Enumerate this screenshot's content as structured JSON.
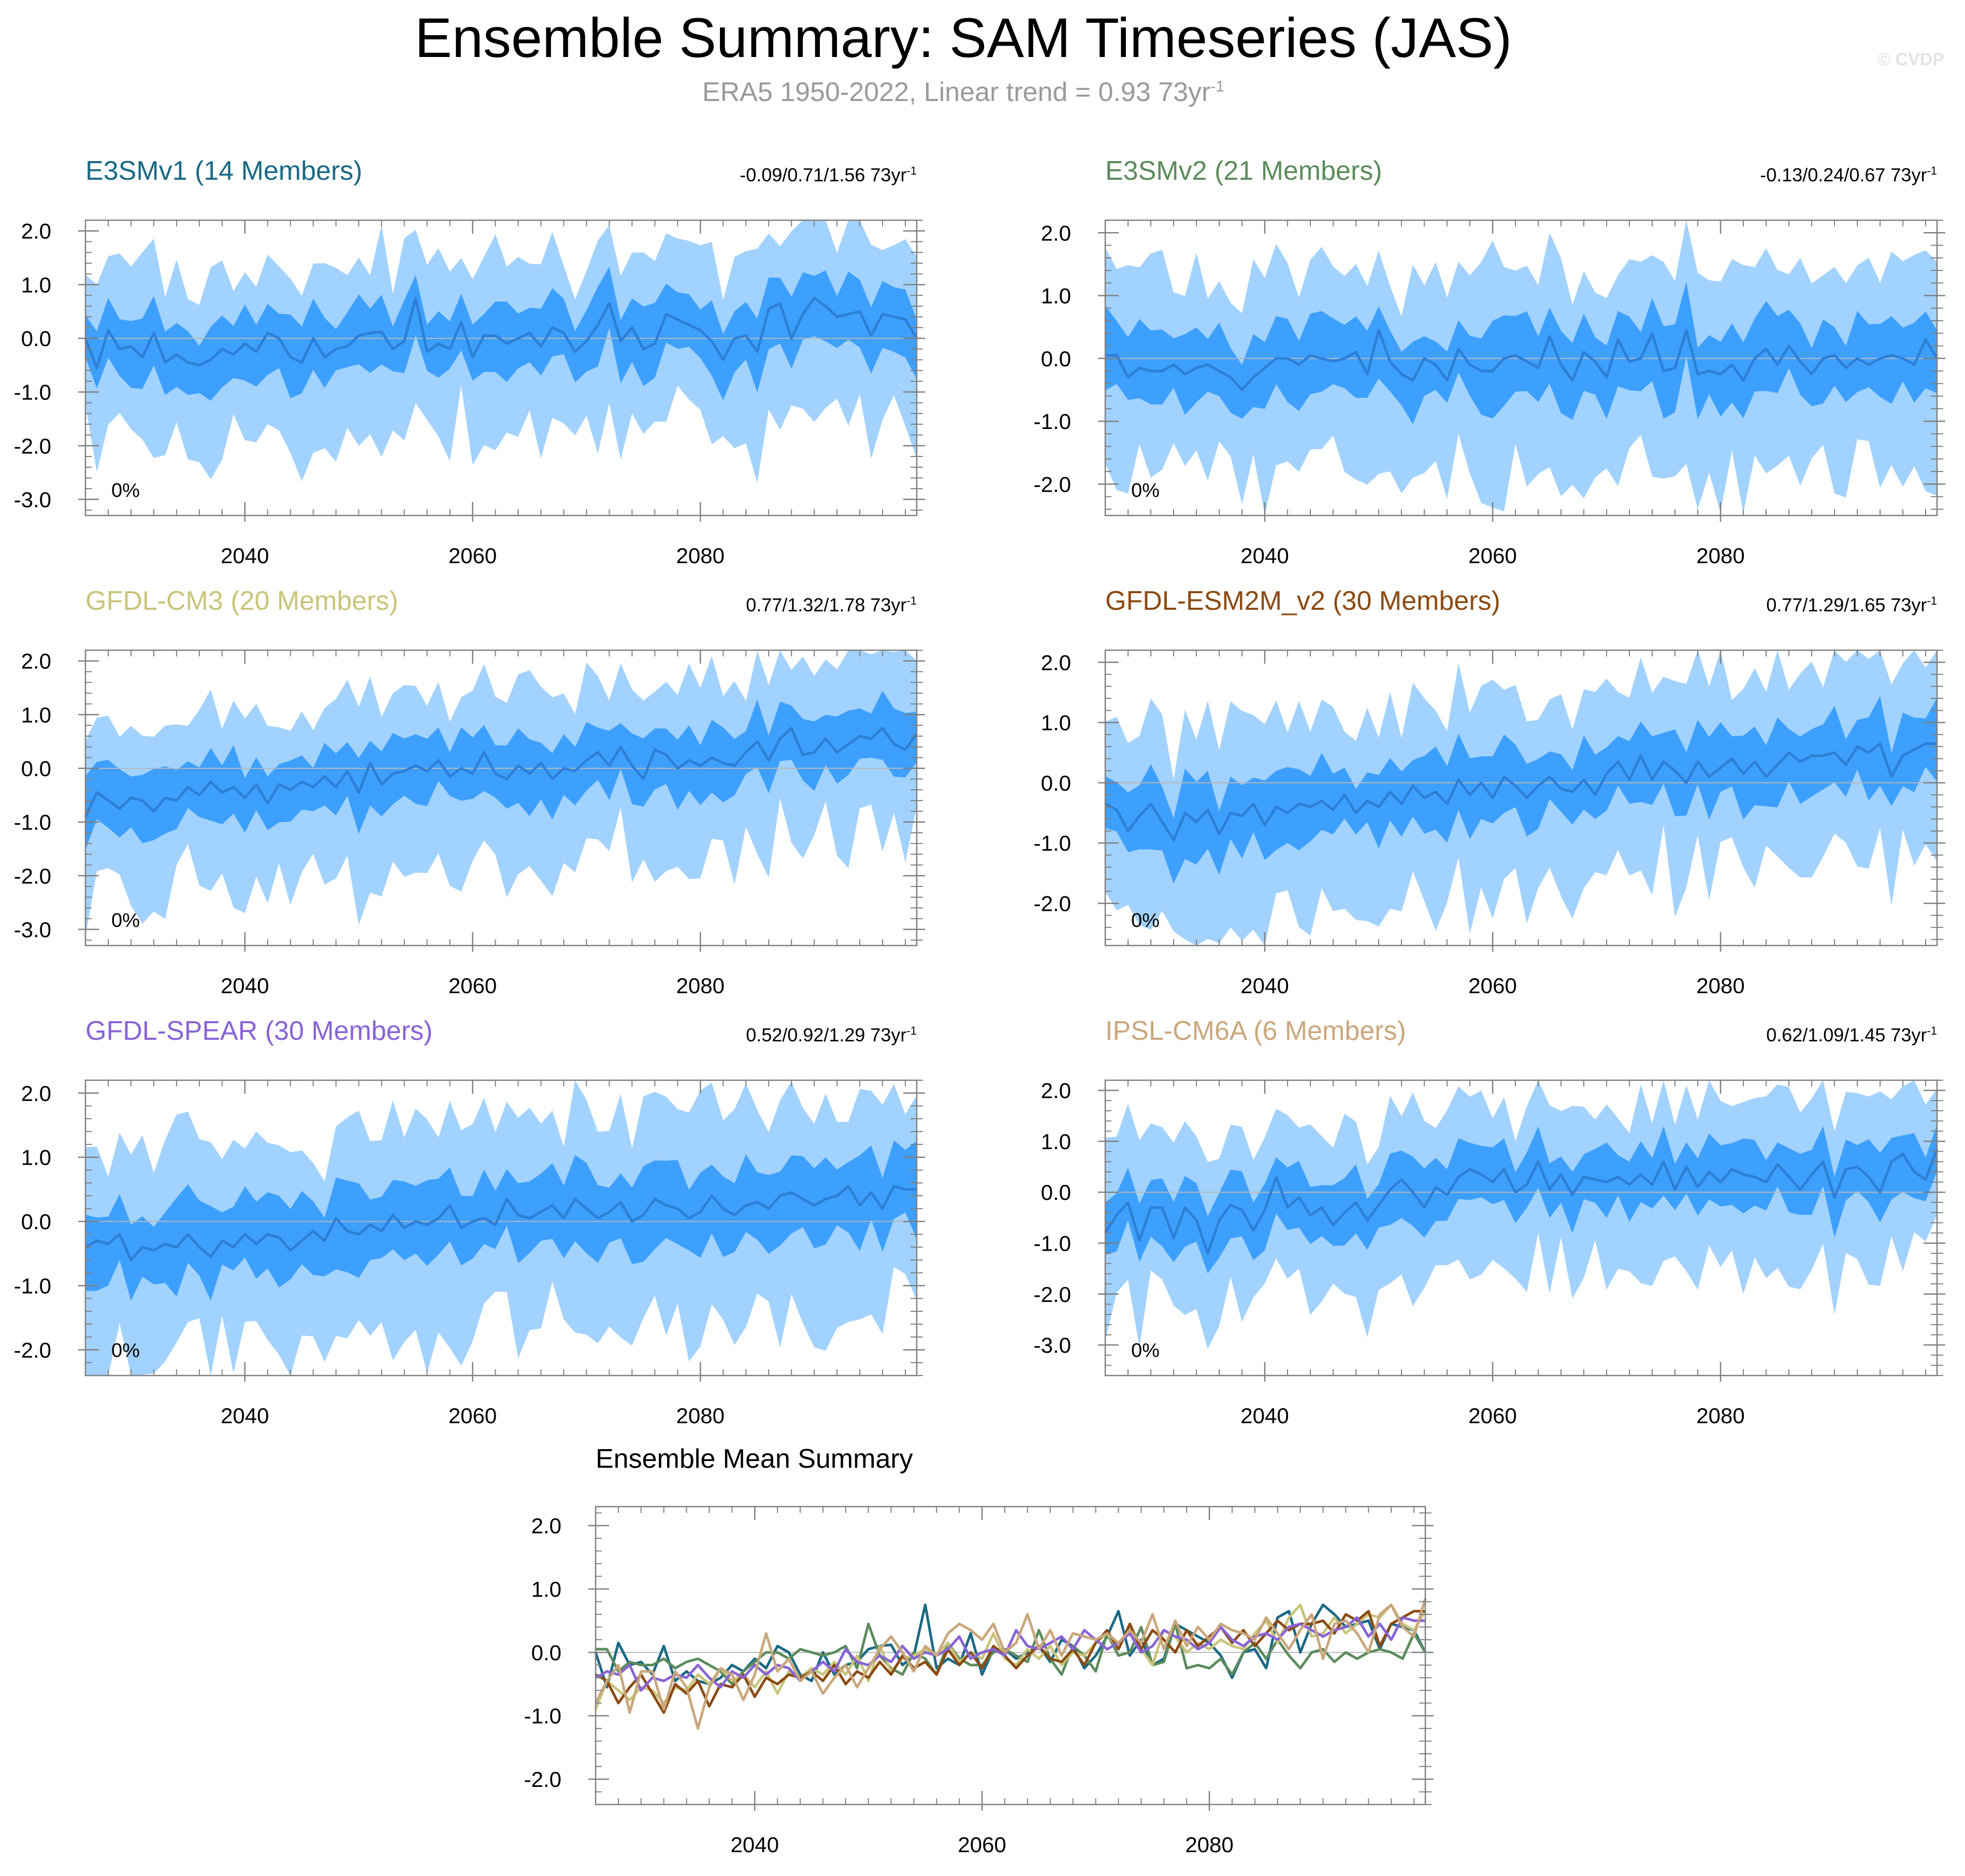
{
  "title": "Ensemble Summary: SAM Timeseries (JAS)",
  "subtitle": {
    "text": "ERA5 1950-2022, Linear trend = 0.93 73yr",
    "superscript": "-1"
  },
  "watermark": "© CVDP",
  "colors": {
    "outer_band": "#a2d2ff",
    "inner_band": "#3da0ff",
    "mean_line": "#2d7fd6",
    "zero_line": "#b8b8b8",
    "axis": "#7f7f7f"
  },
  "chart_data": [
    {
      "type": "area",
      "title": "E3SMv1 (14 Members)",
      "title_color": "#1a6985",
      "stats": "-0.09/0.71/1.56 73yr",
      "stats_superscript": "-1",
      "percent_label": "0%",
      "xlim": [
        2026,
        2099
      ],
      "ylim": [
        -3.3,
        2.2
      ],
      "xticks": [
        2040,
        2060,
        2080
      ],
      "yticks": [
        -3,
        -2,
        -1,
        0,
        1,
        2
      ],
      "ytick_labels": [
        "-3.0",
        "-2.0",
        "-1.0",
        "0.0",
        "1.0",
        "2.0"
      ],
      "series": [
        {
          "name": "ensemble mean",
          "start_year": 2026,
          "values": [
            0.0,
            -0.55,
            0.15,
            -0.2,
            -0.15,
            -0.35,
            0.1,
            -0.45,
            -0.3,
            -0.45,
            -0.5,
            -0.4,
            -0.2,
            -0.3,
            -0.1,
            -0.25,
            0.1,
            0.0,
            -0.35,
            -0.45,
            0.0,
            -0.35,
            -0.2,
            -0.15,
            0.05,
            0.1,
            0.12,
            -0.2,
            -0.05,
            0.75,
            -0.25,
            -0.1,
            -0.2,
            0.3,
            -0.35,
            0.05,
            0.05,
            -0.1,
            0.0,
            0.1,
            -0.15,
            0.2,
            0.1,
            -0.25,
            -0.05,
            0.25,
            0.65,
            -0.05,
            0.2,
            -0.2,
            -0.1,
            0.45,
            0.35,
            0.25,
            0.15,
            -0.05,
            -0.4,
            0.0,
            0.05,
            -0.25,
            0.55,
            0.65,
            0.0,
            0.45,
            0.75,
            0.6,
            0.4,
            0.45,
            0.5,
            0.05,
            0.45,
            0.4,
            0.35,
            0.0
          ]
        }
      ]
    },
    {
      "type": "area",
      "title": "E3SMv2 (21 Members)",
      "title_color": "#5b8b5c",
      "stats": "-0.13/0.24/0.67 73yr",
      "stats_superscript": "-1",
      "percent_label": "0%",
      "xlim": [
        2026,
        2099
      ],
      "ylim": [
        -2.5,
        2.2
      ],
      "xticks": [
        2040,
        2060,
        2080
      ],
      "yticks": [
        -2,
        -1,
        0,
        1,
        2
      ],
      "ytick_labels": [
        "-2.0",
        "-1.0",
        "0.0",
        "1.0",
        "2.0"
      ],
      "series": [
        {
          "name": "ensemble mean",
          "start_year": 2026,
          "values": [
            0.05,
            0.05,
            -0.3,
            -0.15,
            -0.2,
            -0.2,
            -0.1,
            -0.25,
            -0.15,
            -0.1,
            -0.2,
            -0.3,
            -0.5,
            -0.3,
            -0.15,
            0.0,
            0.0,
            -0.1,
            0.05,
            0.0,
            -0.05,
            0.0,
            0.1,
            -0.25,
            0.45,
            -0.05,
            -0.25,
            -0.35,
            0.0,
            -0.1,
            -0.35,
            0.15,
            -0.1,
            -0.2,
            -0.2,
            0.0,
            0.05,
            -0.05,
            -0.15,
            0.35,
            -0.1,
            -0.35,
            0.1,
            -0.05,
            -0.3,
            0.3,
            -0.05,
            0.0,
            0.4,
            -0.2,
            -0.15,
            0.45,
            -0.25,
            -0.2,
            -0.25,
            -0.1,
            -0.35,
            0.0,
            0.15,
            -0.1,
            0.2,
            -0.05,
            -0.25,
            0.0,
            0.05,
            -0.15,
            0.0,
            -0.1,
            0.0,
            0.05,
            0.0,
            -0.1,
            0.3,
            0.0
          ]
        }
      ]
    },
    {
      "type": "area",
      "title": "GFDL-CM3 (20 Members)",
      "title_color": "#c9c47a",
      "stats": "0.77/1.32/1.78 73yr",
      "stats_superscript": "-1",
      "percent_label": "0%",
      "xlim": [
        2026,
        2099
      ],
      "ylim": [
        -3.3,
        2.2
      ],
      "xticks": [
        2040,
        2060,
        2080
      ],
      "yticks": [
        -3,
        -2,
        -1,
        0,
        1,
        2
      ],
      "ytick_labels": [
        "-3.0",
        "-2.0",
        "-1.0",
        "0.0",
        "1.0",
        "2.0"
      ],
      "series": [
        {
          "name": "ensemble mean",
          "start_year": 2026,
          "values": [
            -0.9,
            -0.45,
            -0.6,
            -0.75,
            -0.55,
            -0.6,
            -0.8,
            -0.55,
            -0.6,
            -0.35,
            -0.5,
            -0.25,
            -0.45,
            -0.35,
            -0.55,
            -0.3,
            -0.65,
            -0.3,
            -0.4,
            -0.25,
            -0.35,
            -0.15,
            -0.35,
            -0.05,
            -0.45,
            0.1,
            -0.3,
            -0.1,
            -0.05,
            0.05,
            -0.05,
            0.15,
            -0.15,
            0.0,
            -0.1,
            0.3,
            -0.1,
            -0.2,
            0.05,
            -0.1,
            0.1,
            -0.2,
            0.0,
            -0.05,
            0.15,
            0.3,
            0.05,
            0.4,
            0.05,
            -0.2,
            0.35,
            0.25,
            0.0,
            0.15,
            0.05,
            0.2,
            0.1,
            0.05,
            0.3,
            0.5,
            0.15,
            0.55,
            0.75,
            0.25,
            0.3,
            0.55,
            0.3,
            0.45,
            0.6,
            0.55,
            0.75,
            0.45,
            0.35,
            0.65
          ]
        }
      ]
    },
    {
      "type": "area",
      "title": "GFDL-ESM2M_v2 (30 Members)",
      "title_color": "#8b4a12",
      "stats": "0.77/1.29/1.65 73yr",
      "stats_superscript": "-1",
      "percent_label": "0%",
      "xlim": [
        2026,
        2099
      ],
      "ylim": [
        -2.7,
        2.2
      ],
      "xticks": [
        2040,
        2060,
        2080
      ],
      "yticks": [
        -2,
        -1,
        0,
        1,
        2
      ],
      "ytick_labels": [
        "-2.0",
        "-1.0",
        "0.0",
        "1.0",
        "2.0"
      ],
      "series": [
        {
          "name": "ensemble mean",
          "start_year": 2026,
          "values": [
            -0.35,
            -0.45,
            -0.8,
            -0.55,
            -0.35,
            -0.65,
            -0.95,
            -0.5,
            -0.65,
            -0.45,
            -0.85,
            -0.5,
            -0.55,
            -0.35,
            -0.7,
            -0.4,
            -0.5,
            -0.35,
            -0.4,
            -0.3,
            -0.45,
            -0.2,
            -0.5,
            -0.3,
            -0.4,
            -0.15,
            -0.35,
            -0.05,
            -0.25,
            -0.15,
            -0.35,
            0.05,
            -0.2,
            0.0,
            -0.25,
            0.1,
            -0.05,
            -0.25,
            -0.05,
            0.1,
            -0.1,
            -0.15,
            0.05,
            -0.2,
            0.15,
            0.35,
            0.05,
            0.45,
            0.05,
            0.35,
            0.2,
            0.0,
            0.35,
            0.1,
            0.25,
            0.4,
            0.15,
            0.35,
            0.1,
            0.3,
            0.5,
            0.35,
            0.45,
            0.45,
            0.5,
            0.3,
            0.6,
            0.5,
            0.65,
            0.1,
            0.45,
            0.55,
            0.65,
            0.65
          ]
        }
      ]
    },
    {
      "type": "area",
      "title": "GFDL-SPEAR (30 Members)",
      "title_color": "#8863d6",
      "stats": "0.52/0.92/1.29 73yr",
      "stats_superscript": "-1",
      "percent_label": "0%",
      "xlim": [
        2026,
        2099
      ],
      "ylim": [
        -2.4,
        2.2
      ],
      "xticks": [
        2040,
        2060,
        2080
      ],
      "yticks": [
        -2,
        -1,
        0,
        1,
        2
      ],
      "ytick_labels": [
        "-2.0",
        "-1.0",
        "0.0",
        "1.0",
        "2.0"
      ],
      "series": [
        {
          "name": "ensemble mean",
          "start_year": 2026,
          "values": [
            -0.4,
            -0.3,
            -0.35,
            -0.2,
            -0.6,
            -0.4,
            -0.45,
            -0.35,
            -0.4,
            -0.2,
            -0.4,
            -0.55,
            -0.3,
            -0.4,
            -0.2,
            -0.35,
            -0.2,
            -0.25,
            -0.45,
            -0.3,
            -0.15,
            -0.3,
            0.05,
            -0.15,
            -0.2,
            -0.05,
            -0.15,
            0.1,
            -0.1,
            0.0,
            -0.05,
            0.05,
            0.25,
            -0.1,
            0.0,
            0.05,
            -0.05,
            0.35,
            0.1,
            0.05,
            0.15,
            0.25,
            0.05,
            0.35,
            0.2,
            0.05,
            0.15,
            0.3,
            0.0,
            0.1,
            0.35,
            0.25,
            0.2,
            0.05,
            0.15,
            0.4,
            0.2,
            0.1,
            0.25,
            0.3,
            0.2,
            0.4,
            0.45,
            0.35,
            0.25,
            0.35,
            0.4,
            0.55,
            0.25,
            0.45,
            0.2,
            0.55,
            0.5,
            0.5
          ]
        }
      ]
    },
    {
      "type": "area",
      "title": "IPSL-CM6A (6 Members)",
      "title_color": "#c9a77c",
      "stats": "0.62/1.09/1.45 73yr",
      "stats_superscript": "-1",
      "percent_label": "0%",
      "xlim": [
        2026,
        2099
      ],
      "ylim": [
        -3.6,
        2.2
      ],
      "xticks": [
        2040,
        2060,
        2080
      ],
      "yticks": [
        -3,
        -2,
        -1,
        0,
        1,
        2
      ],
      "ytick_labels": [
        "-3.0",
        "-2.0",
        "-1.0",
        "0.0",
        "1.0",
        "2.0"
      ],
      "series": [
        {
          "name": "ensemble mean",
          "start_year": 2026,
          "values": [
            -0.8,
            -0.45,
            -0.2,
            -0.95,
            -0.3,
            -0.3,
            -0.9,
            -0.3,
            -0.55,
            -1.2,
            -0.55,
            -0.25,
            -0.35,
            -0.75,
            -0.35,
            0.3,
            -0.3,
            -0.1,
            -0.45,
            -0.3,
            -0.65,
            -0.4,
            -0.2,
            -0.55,
            -0.25,
            0.05,
            0.25,
            0.0,
            -0.3,
            0.1,
            -0.05,
            0.3,
            0.45,
            0.35,
            0.2,
            0.45,
            0.0,
            0.15,
            0.6,
            0.05,
            0.35,
            -0.05,
            0.3,
            0.25,
            0.2,
            0.3,
            0.15,
            0.35,
            0.15,
            0.6,
            0.05,
            0.5,
            0.1,
            0.4,
            0.2,
            0.45,
            0.35,
            0.3,
            0.2,
            0.55,
            0.3,
            0.05,
            0.35,
            0.6,
            -0.1,
            0.45,
            0.5,
            0.3,
            0.0,
            0.6,
            0.75,
            0.4,
            0.25,
            0.85
          ]
        }
      ]
    },
    {
      "type": "line",
      "title": "Ensemble Mean Summary",
      "xlim": [
        2026,
        2099
      ],
      "ylim": [
        -2.4,
        2.3
      ],
      "xticks": [
        2040,
        2060,
        2080
      ],
      "yticks": [
        -2,
        -1,
        0,
        1,
        2
      ],
      "ytick_labels": [
        "-2.0",
        "-1.0",
        "0.0",
        "1.0",
        "2.0"
      ],
      "series_from_panels": [
        {
          "panel": 0,
          "color": "#1a6985"
        },
        {
          "panel": 1,
          "color": "#5b8b5c"
        },
        {
          "panel": 2,
          "color": "#c9c47a"
        },
        {
          "panel": 3,
          "color": "#8b4a12"
        },
        {
          "panel": 4,
          "color": "#8863d6"
        },
        {
          "panel": 5,
          "color": "#c9a77c"
        }
      ]
    }
  ]
}
